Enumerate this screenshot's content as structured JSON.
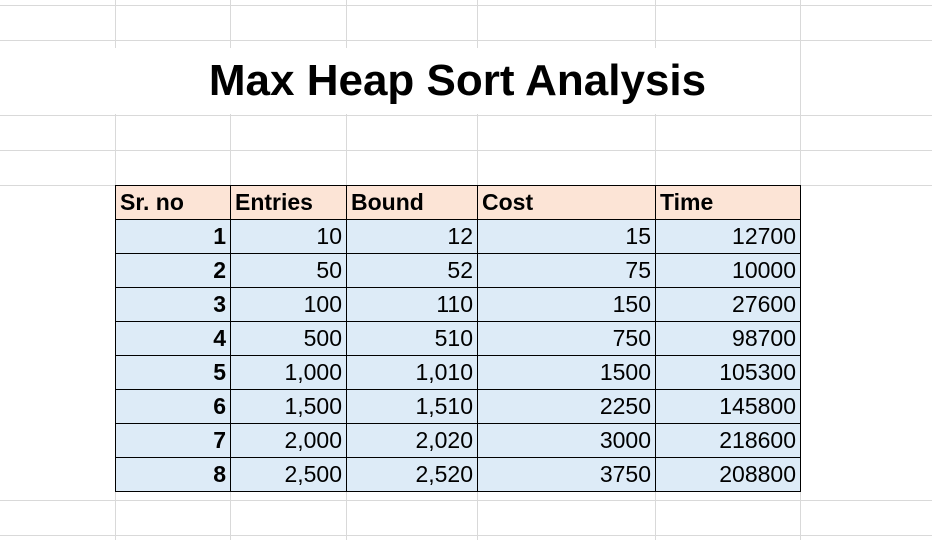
{
  "title": "Max Heap Sort Analysis",
  "table": {
    "headers": [
      "Sr. no",
      "Entries",
      "Bound",
      "Cost",
      "Time"
    ],
    "rows": [
      [
        "1",
        "10",
        "12",
        "15",
        "12700"
      ],
      [
        "2",
        "50",
        "52",
        "75",
        "10000"
      ],
      [
        "3",
        "100",
        "110",
        "150",
        "27600"
      ],
      [
        "4",
        "500",
        "510",
        "750",
        "98700"
      ],
      [
        "5",
        "1,000",
        "1,010",
        "1500",
        "105300"
      ],
      [
        "6",
        "1,500",
        "1,510",
        "2250",
        "145800"
      ],
      [
        "7",
        "2,000",
        "2,020",
        "3000",
        "218600"
      ],
      [
        "8",
        "2,500",
        "2,520",
        "3750",
        "208800"
      ]
    ]
  }
}
